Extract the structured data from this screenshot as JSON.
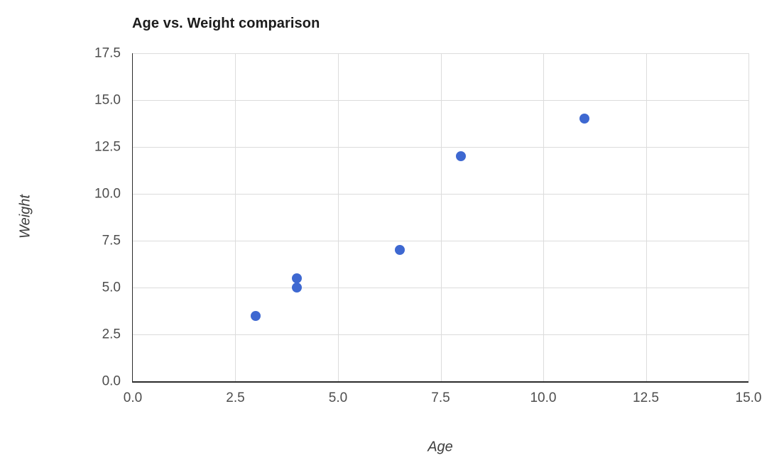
{
  "chart_data": {
    "type": "scatter",
    "title": "Age vs. Weight comparison",
    "xlabel": "Age",
    "ylabel": "Weight",
    "xlim": [
      0,
      15
    ],
    "ylim": [
      0,
      17.5
    ],
    "xticks": [
      "0.0",
      "2.5",
      "5.0",
      "7.5",
      "10.0",
      "12.5",
      "15.0"
    ],
    "yticks": [
      "0.0",
      "2.5",
      "5.0",
      "7.5",
      "10.0",
      "12.5",
      "15.0",
      "17.5"
    ],
    "grid": true,
    "legend": "none",
    "points": [
      {
        "x": 3,
        "y": 3.5
      },
      {
        "x": 4,
        "y": 5
      },
      {
        "x": 4,
        "y": 5.5
      },
      {
        "x": 6.5,
        "y": 7
      },
      {
        "x": 8,
        "y": 12
      },
      {
        "x": 11,
        "y": 14
      }
    ]
  },
  "colors": {
    "point_color": "#3e68d1",
    "gridline_color": "#dcdcdc",
    "spine_color": "#2b2b2b",
    "tick_color": "#4d4d4d",
    "title_color": "#1c1c1c",
    "axis_label_color": "#3d3d3d",
    "bg_color": "#ffffff"
  }
}
